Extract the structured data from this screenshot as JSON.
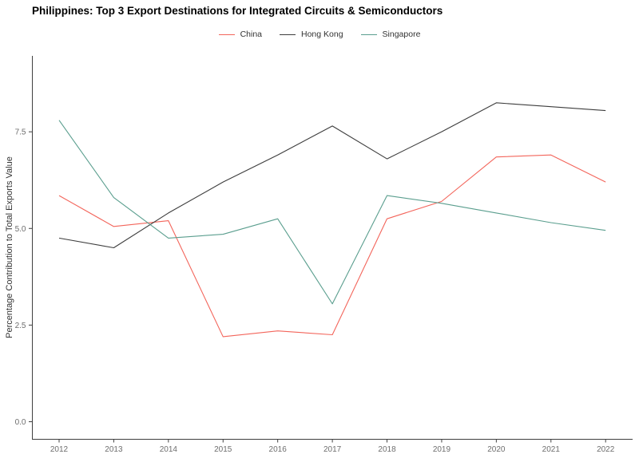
{
  "chart_data": {
    "type": "line",
    "title": "Philippines: Top 3 Export Destinations for Integrated Circuits & Semiconductors",
    "xlabel": "",
    "ylabel": "Percentage Contribution to Total Exports Value",
    "categories": [
      2012,
      2013,
      2014,
      2015,
      2016,
      2017,
      2018,
      2019,
      2020,
      2021,
      2022
    ],
    "series": [
      {
        "name": "China",
        "color": "#f3655b",
        "values": [
          5.85,
          5.05,
          5.2,
          2.2,
          2.35,
          2.25,
          5.25,
          5.7,
          6.85,
          6.9,
          6.2
        ]
      },
      {
        "name": "Hong Kong",
        "color": "#3d3d3d",
        "values": [
          4.75,
          4.5,
          5.4,
          6.2,
          6.9,
          7.65,
          6.8,
          7.5,
          8.25,
          8.15,
          8.05
        ]
      },
      {
        "name": "Singapore",
        "color": "#5a9e8e",
        "values": [
          7.8,
          5.8,
          4.75,
          4.85,
          5.25,
          3.05,
          5.85,
          5.65,
          5.4,
          5.15,
          4.95
        ]
      }
    ],
    "yticks": [
      0.0,
      2.5,
      5.0,
      7.5
    ],
    "ytick_labels": [
      "0.0",
      "2.5",
      "5.0",
      "7.5"
    ],
    "ylim": [
      0,
      9.5
    ],
    "grid": false,
    "legend_position": "top",
    "axis_color": "#3f3f3f",
    "tick_label_color": "#6e6e6e",
    "background": "#ffffff"
  }
}
